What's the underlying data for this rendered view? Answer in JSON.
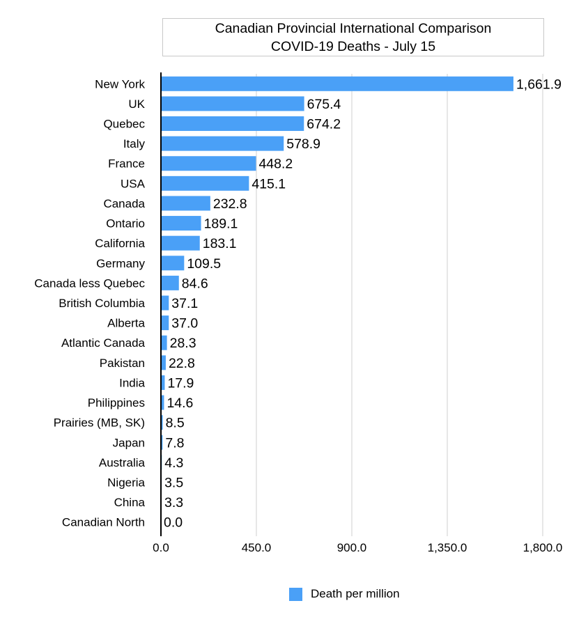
{
  "chart_data": {
    "type": "bar",
    "orientation": "horizontal",
    "title": [
      "Canadian Provincial International Comparison",
      "COVID-19 Deaths - July 15"
    ],
    "xlabel": "",
    "ylabel": "",
    "xlim": [
      0,
      1800
    ],
    "xticks": [
      0,
      450,
      900,
      1350,
      1800
    ],
    "xtick_labels": [
      "0.0",
      "450.0",
      "900.0",
      "1,350.0",
      "1,800.0"
    ],
    "grid": true,
    "legend_position": "bottom",
    "bar_color": "#4aa0f7",
    "categories": [
      "New York",
      "UK",
      "Quebec",
      "Italy",
      "France",
      "USA",
      "Canada",
      "Ontario",
      "California",
      "Germany",
      "Canada less Quebec",
      "British Columbia",
      "Alberta",
      "Atlantic Canada",
      "Pakistan",
      "India",
      "Philippines",
      "Prairies (MB, SK)",
      "Japan",
      "Australia",
      "Nigeria",
      "China",
      "Canadian North"
    ],
    "series": [
      {
        "name": "Death per million",
        "values": [
          1661.9,
          675.4,
          674.2,
          578.9,
          448.2,
          415.1,
          232.8,
          189.1,
          183.1,
          109.5,
          84.6,
          37.1,
          37.0,
          28.3,
          22.8,
          17.9,
          14.6,
          8.5,
          7.8,
          4.3,
          3.5,
          3.3,
          0.0
        ],
        "value_labels": [
          "1,661.9",
          "675.4",
          "674.2",
          "578.9",
          "448.2",
          "415.1",
          "232.8",
          "189.1",
          "183.1",
          "109.5",
          "84.6",
          "37.1",
          "37.0",
          "28.3",
          "22.8",
          "17.9",
          "14.6",
          "8.5",
          "7.8",
          "4.3",
          "3.5",
          "3.3",
          "0.0"
        ]
      }
    ]
  }
}
